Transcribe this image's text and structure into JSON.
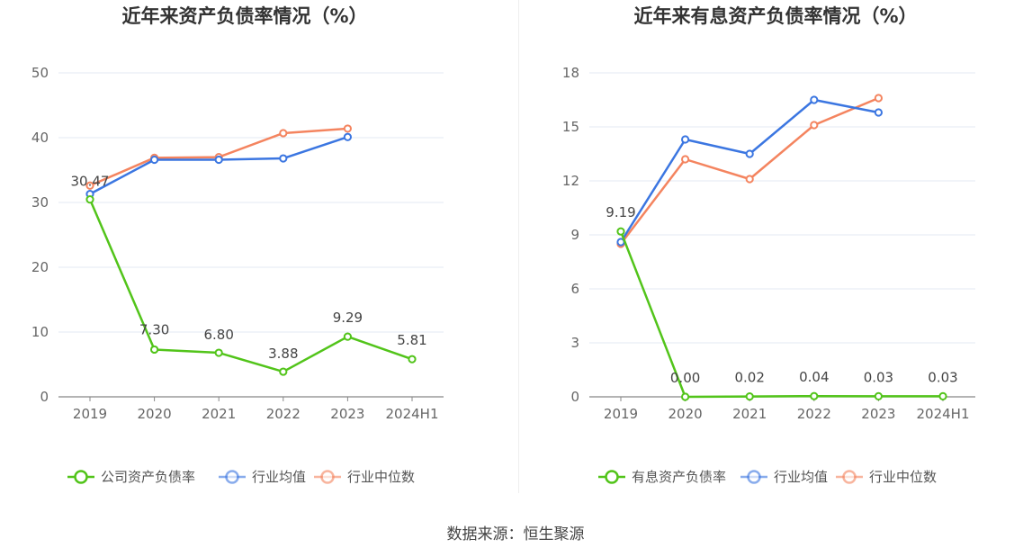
{
  "source_text": "数据来源：恒生聚源",
  "chart_data": [
    {
      "type": "line",
      "title": "近年来资产负债率情况（%）",
      "categories": [
        "2019",
        "2020",
        "2021",
        "2022",
        "2023",
        "2024H1"
      ],
      "ylim": [
        0,
        50
      ],
      "yticks": [
        0,
        10,
        20,
        30,
        40,
        50
      ],
      "grid": true,
      "legend_position": "bottom",
      "series": [
        {
          "name": "公司资产负债率",
          "color": "#52c41a",
          "values": [
            30.47,
            7.3,
            6.8,
            3.88,
            9.29,
            5.81
          ],
          "labels": [
            "30.47",
            "7.30",
            "6.80",
            "3.88",
            "9.29",
            "5.81"
          ]
        },
        {
          "name": "行业均值",
          "color": "#3b76e1",
          "values": [
            31.3,
            36.6,
            36.6,
            36.8,
            40.1,
            null
          ]
        },
        {
          "name": "行业中位数",
          "color": "#f4845f",
          "values": [
            32.6,
            36.9,
            37.0,
            40.7,
            41.4,
            null
          ]
        }
      ]
    },
    {
      "type": "line",
      "title": "近年来有息资产负债率情况（%）",
      "categories": [
        "2019",
        "2020",
        "2021",
        "2022",
        "2023",
        "2024H1"
      ],
      "ylim": [
        0,
        18
      ],
      "yticks": [
        0,
        3,
        6,
        9,
        12,
        15,
        18
      ],
      "grid": true,
      "legend_position": "bottom",
      "series": [
        {
          "name": "有息资产负债率",
          "color": "#52c41a",
          "values": [
            9.19,
            0.0,
            0.02,
            0.04,
            0.03,
            0.03
          ],
          "labels": [
            "9.19",
            "0.00",
            "0.02",
            "0.04",
            "0.03",
            "0.03"
          ]
        },
        {
          "name": "行业均值",
          "color": "#3b76e1",
          "values": [
            8.6,
            14.3,
            13.5,
            16.5,
            15.8,
            null
          ]
        },
        {
          "name": "行业中位数",
          "color": "#f4845f",
          "values": [
            8.5,
            13.2,
            12.1,
            15.1,
            16.6,
            null
          ]
        }
      ]
    }
  ]
}
